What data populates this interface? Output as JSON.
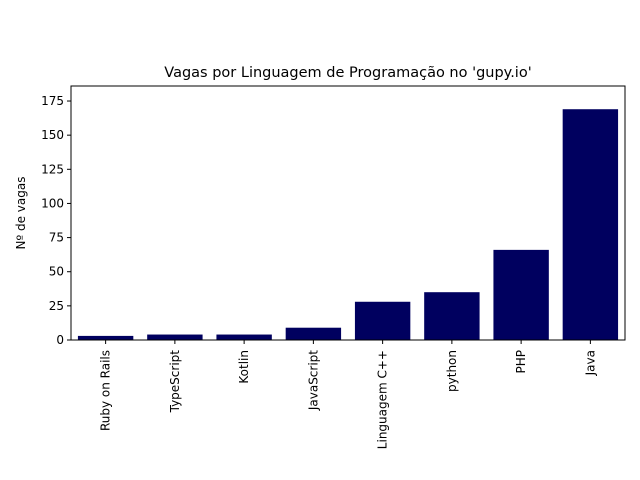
{
  "chart_data": {
    "type": "bar",
    "title": "Vagas por Linguagem de Programação no 'gupy.io'",
    "xlabel": "",
    "ylabel": "Nº de vagas",
    "categories": [
      "Ruby on Rails",
      "TypeScript",
      "Kotlin",
      "JavaScript",
      "Linguagem C++",
      "python",
      "PHP",
      "Java"
    ],
    "values": [
      3,
      4,
      4,
      9,
      28,
      35,
      66,
      169
    ],
    "ylim": [
      0,
      186
    ],
    "yticks": [
      0,
      25,
      50,
      75,
      100,
      125,
      150,
      175
    ],
    "grid": false,
    "bar_color": "#00005f"
  }
}
